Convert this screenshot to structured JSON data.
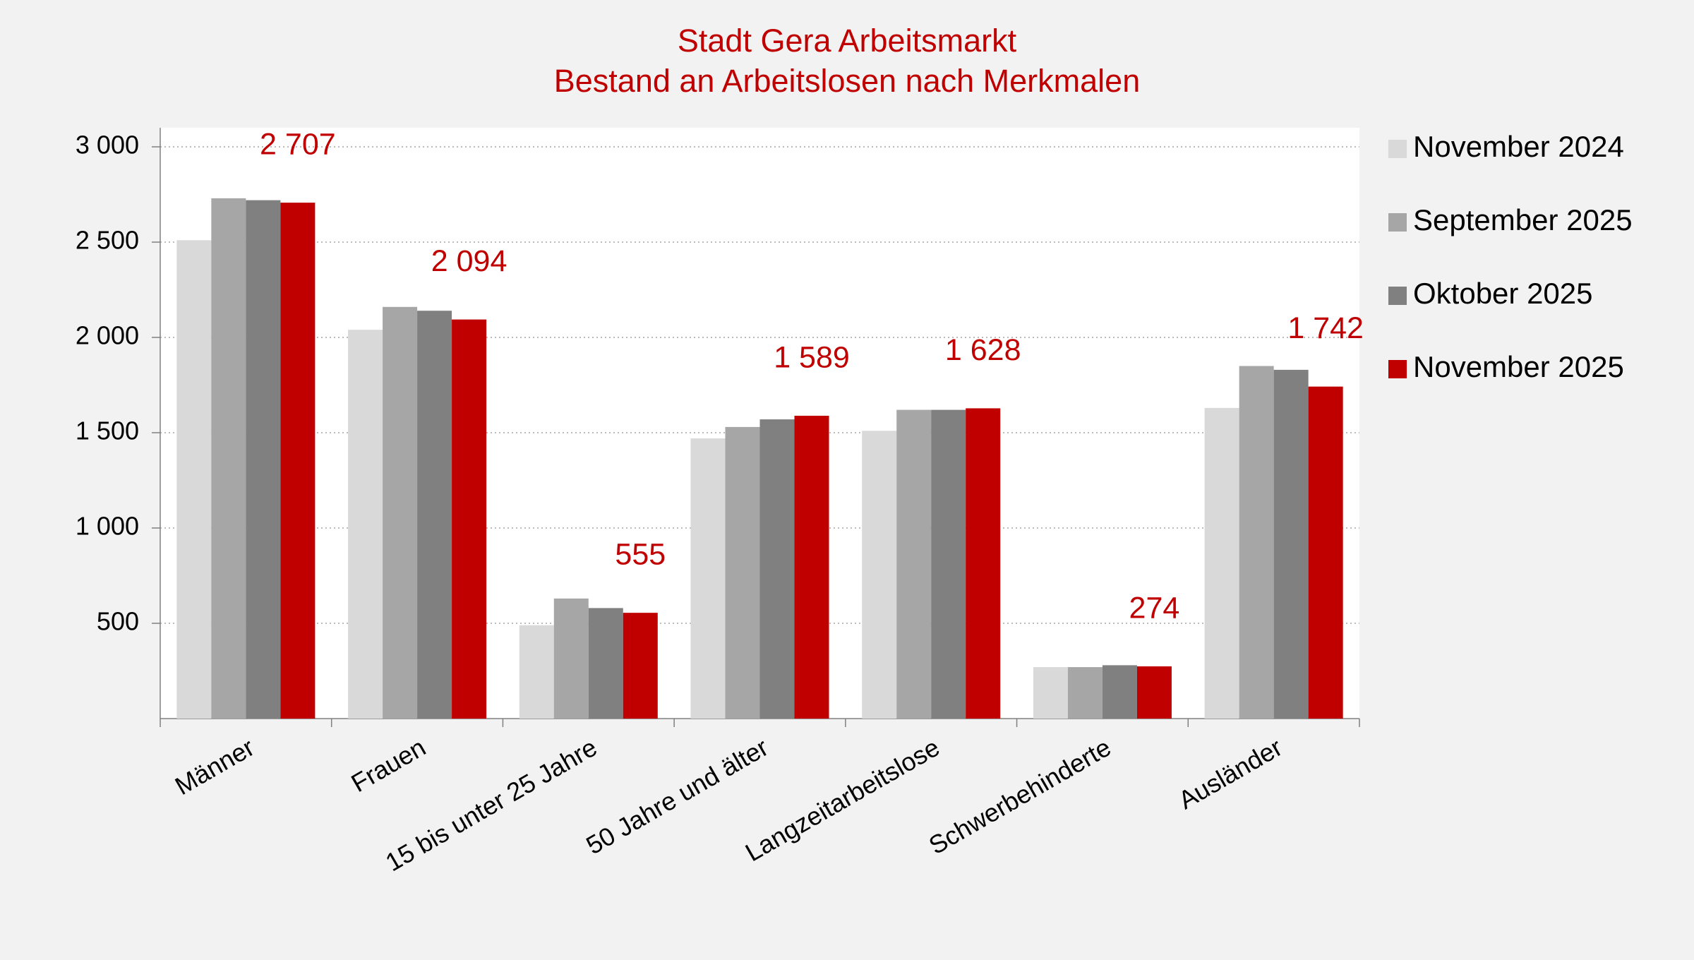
{
  "chart_data": {
    "type": "bar",
    "title": "Stadt Gera Arbeitsmarkt",
    "subtitle": "Bestand an Arbeitslosen nach Merkmalen",
    "categories": [
      "Männer",
      "Frauen",
      "15 bis unter 25 Jahre",
      "50 Jahre und älter",
      "Langzeitarbeitslose",
      "Schwerbehinderte",
      "Ausländer"
    ],
    "series": [
      {
        "name": "November 2024",
        "color": "#d9d9d9",
        "values": [
          2510,
          2040,
          490,
          1470,
          1510,
          270,
          1630
        ]
      },
      {
        "name": "September 2025",
        "color": "#a6a6a6",
        "values": [
          2730,
          2160,
          630,
          1530,
          1620,
          270,
          1850
        ]
      },
      {
        "name": "Oktober 2025",
        "color": "#808080",
        "values": [
          2720,
          2140,
          580,
          1570,
          1620,
          280,
          1830
        ]
      },
      {
        "name": "November 2025",
        "color": "#c00000",
        "values": [
          2707,
          2094,
          555,
          1589,
          1628,
          274,
          1742
        ],
        "value_labels": [
          "2 707",
          "2 094",
          "555",
          "1 589",
          "1 628",
          "274",
          "1 742"
        ]
      }
    ],
    "ylim": [
      0,
      3100
    ],
    "yticks": [
      500,
      {
        "value": 1000,
        "label": "1 000"
      },
      {
        "value": 1500,
        "label": "1 500"
      },
      {
        "value": 2000,
        "label": "2 000"
      },
      {
        "value": 2500,
        "label": "2 500"
      },
      {
        "value": 3000,
        "label": "3 000"
      }
    ],
    "grid": true,
    "legend": "right"
  }
}
